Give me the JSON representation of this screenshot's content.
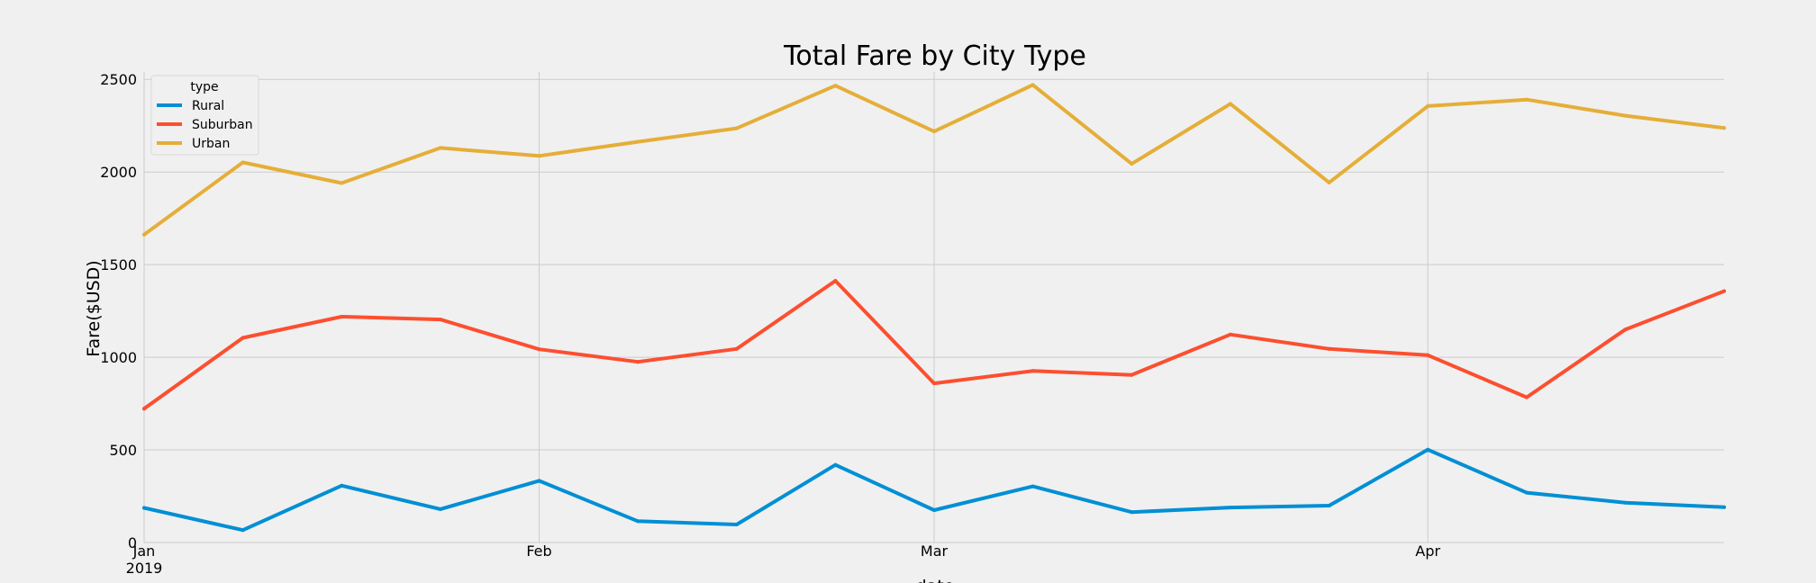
{
  "chart_data": {
    "type": "line",
    "title": "Total Fare by City Type",
    "ylabel": "Fare($USD)",
    "xlabel": "date",
    "ylim": [
      0,
      2540
    ],
    "yticks": [
      0,
      500,
      1000,
      1500,
      2000,
      2500
    ],
    "x": [
      "2019-01-06",
      "2019-01-13",
      "2019-01-20",
      "2019-01-27",
      "2019-02-03",
      "2019-02-10",
      "2019-02-17",
      "2019-02-24",
      "2019-03-03",
      "2019-03-10",
      "2019-03-17",
      "2019-03-24",
      "2019-03-31",
      "2019-04-07",
      "2019-04-14",
      "2019-04-21",
      "2019-04-28"
    ],
    "xticks": [
      {
        "date": "2019-01-06",
        "label": "Jan",
        "sublabel": "2019"
      },
      {
        "date": "2019-02-03",
        "label": "Feb",
        "sublabel": ""
      },
      {
        "date": "2019-03-03",
        "label": "Mar",
        "sublabel": ""
      },
      {
        "date": "2019-04-07",
        "label": "Apr",
        "sublabel": ""
      }
    ],
    "legend": {
      "title": "type",
      "position": "top-left"
    },
    "grid": true,
    "series": [
      {
        "name": "Rural",
        "color": "#008fd5",
        "values": [
          187,
          67,
          307,
          180,
          333,
          115,
          97,
          419,
          175,
          303,
          164,
          189,
          199,
          501,
          269,
          215,
          191
        ]
      },
      {
        "name": "Suburban",
        "color": "#fc4f30",
        "values": [
          722,
          1105,
          1219,
          1204,
          1043,
          975,
          1045,
          1413,
          859,
          926,
          905,
          1123,
          1045,
          1011,
          784,
          1150,
          1357
        ]
      },
      {
        "name": "Urban",
        "color": "#e5ae38",
        "values": [
          1662,
          2052,
          1940,
          2130,
          2087,
          2163,
          2236,
          2466,
          2219,
          2470,
          2044,
          2368,
          1943,
          2356,
          2391,
          2304,
          2238
        ]
      }
    ]
  }
}
